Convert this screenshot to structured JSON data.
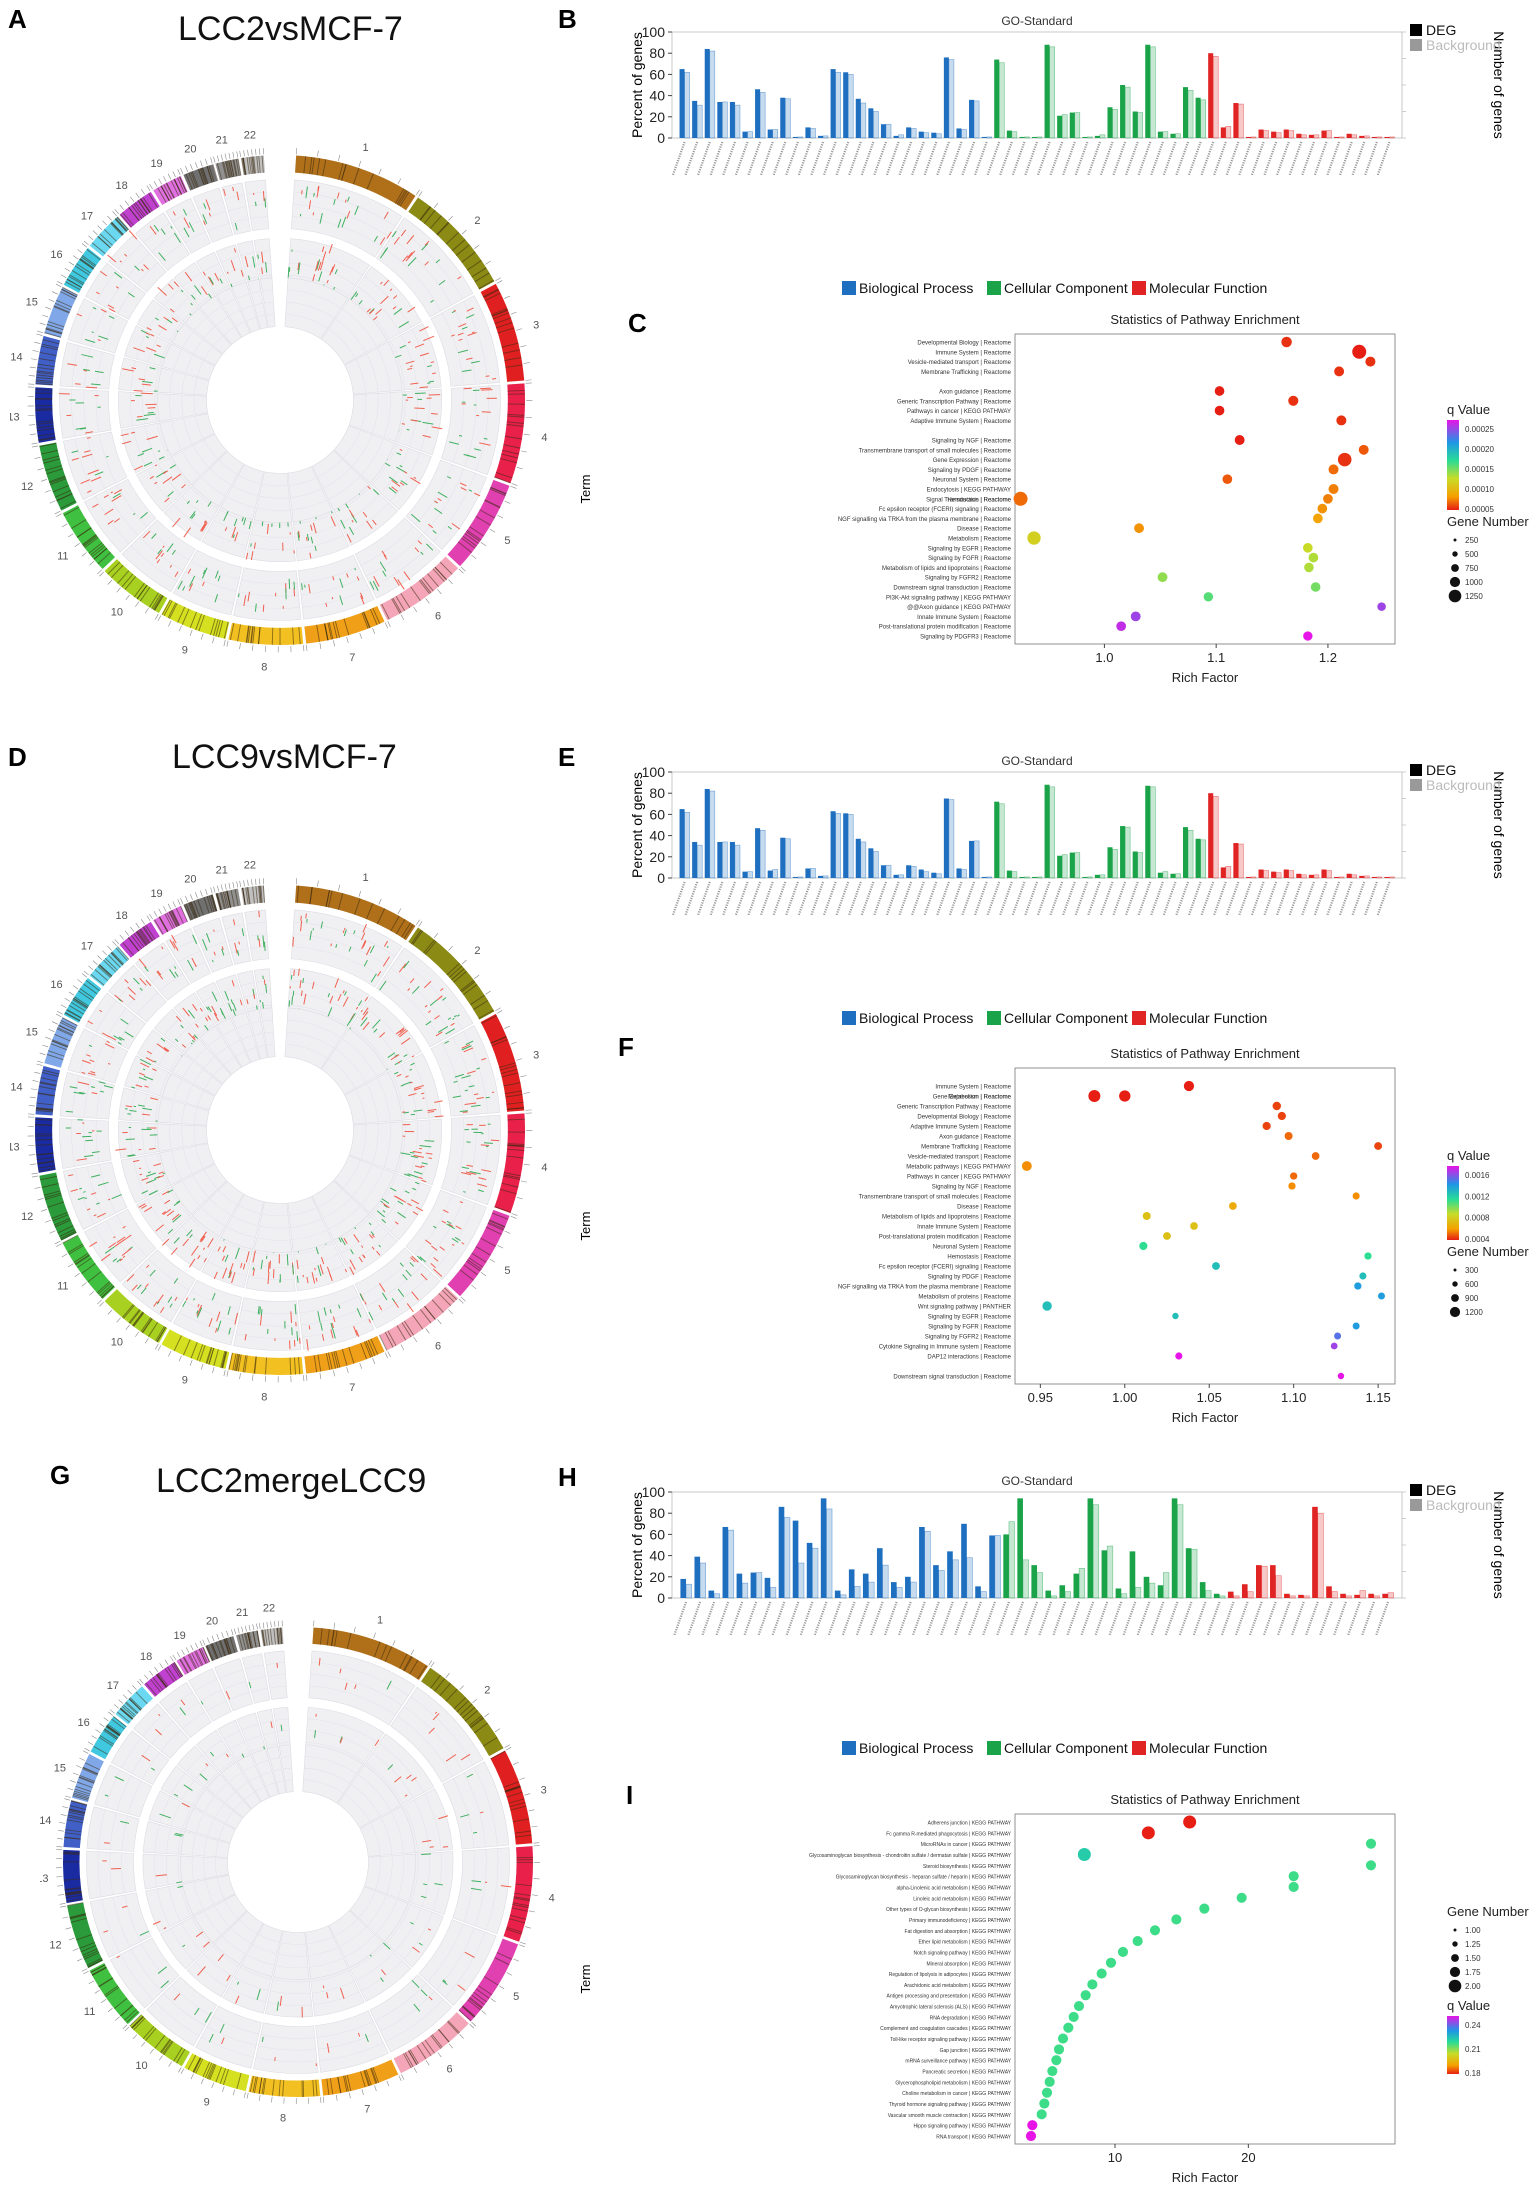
{
  "panels": {
    "A": {
      "label": "A",
      "title": "LCC2vsMCF-7"
    },
    "B": {
      "label": "B"
    },
    "C": {
      "label": "C"
    },
    "D": {
      "label": "D",
      "title": "LCC9vsMCF-7"
    },
    "E": {
      "label": "E"
    },
    "F": {
      "label": "F"
    },
    "G": {
      "label": "G",
      "title": "LCC2mergeLCC9"
    },
    "H": {
      "label": "H"
    },
    "I": {
      "label": "I"
    }
  },
  "colors": {
    "bp": "#1f6fc0",
    "cc": "#1ba34a",
    "mf": "#e02424",
    "bg_gray": "#9a9a9a"
  },
  "chart_data": [
    {
      "id": "B",
      "type": "bar",
      "title": "GO-Standard",
      "ylabel": "Percent of genes",
      "y2label": "Number of genes",
      "ylim": [
        0,
        100
      ],
      "yticks": [
        0,
        20,
        40,
        60,
        80,
        100
      ],
      "legend_top": [
        "DEG",
        "Background"
      ],
      "legend_bottom": [
        "Biological Process",
        "Cellular Component",
        "Molecular Function"
      ],
      "groups": [
        {
          "category": "Biological Process",
          "deg": [
            65,
            35,
            84,
            34,
            34,
            6,
            46,
            8,
            38,
            1,
            10,
            2,
            65,
            62,
            37,
            28,
            13,
            2,
            10,
            6,
            5,
            76,
            9,
            36,
            1
          ],
          "bg": [
            62,
            31,
            82,
            34,
            31,
            6,
            43,
            8,
            37,
            1,
            9,
            2,
            62,
            60,
            33,
            25,
            13,
            3,
            9,
            5,
            4,
            74,
            8,
            35,
            1
          ]
        },
        {
          "category": "Cellular Component",
          "deg": [
            74,
            7,
            1,
            1,
            88,
            21,
            24,
            1,
            2,
            29,
            50,
            25,
            88,
            6,
            4,
            48,
            38
          ],
          "bg": [
            71,
            6,
            1,
            1,
            86,
            22,
            24,
            1,
            3,
            27,
            48,
            24,
            86,
            6,
            4,
            45,
            36
          ]
        },
        {
          "category": "Molecular Function",
          "deg": [
            80,
            10,
            33,
            1,
            8,
            6,
            8,
            4,
            3,
            7,
            1,
            4,
            2,
            1,
            1
          ],
          "bg": [
            77,
            11,
            32,
            1,
            7,
            5,
            7,
            3,
            3,
            7,
            1,
            3,
            2,
            1,
            1
          ]
        }
      ]
    },
    {
      "id": "C",
      "type": "scatter",
      "title": "Statistics of Pathway Enrichment",
      "xlabel": "Rich Factor",
      "ylabel": "Term",
      "xlim": [
        0.92,
        1.26
      ],
      "xticks": [
        1.0,
        1.1,
        1.2
      ],
      "terms": [
        "Developmental Biology | Reactome",
        "Immune System | Reactome",
        "Vesicle-mediated transport | Reactome",
        "Membrane Trafficking | Reactome",
        "Axon guidance | Reactome",
        "Generic Transcription Pathway | Reactome",
        "Pathways in cancer | KEGG PATHWAY",
        "Adaptive Immune System | Reactome",
        "Signaling by NGF | Reactome",
        "Transmembrane transport of small molecules | Reactome",
        "Gene Expression | Reactome",
        "Signaling by PDGF | Reactome",
        "Neuronal System | Reactome",
        "Endocytosis | KEGG PATHWAY",
        "Hemostasis | Reactome",
        "Signal Transduction | Reactome",
        "Fc epsilon receptor (FCERI) signaling | Reactome",
        "NGF signalling via TRKA from the plasma membrane | Reactome",
        "Disease | Reactome",
        "Metabolism | Reactome",
        "Signaling by EGFR | Reactome",
        "Signaling by FGFR | Reactome",
        "Metabolism of lipids and lipoproteins | Reactome",
        "Signaling by FGFR2 | Reactome",
        "Downstream signal transduction | Reactome",
        "PI3K-Akt signaling pathway | KEGG PATHWAY",
        "@@Axon guidance | KEGG PATHWAY",
        "Innate Immune System | Reactome",
        "Post-translational protein modification | Reactome",
        "Signaling by PDGFR3 | Reactome"
      ],
      "x": [
        1.163,
        1.228,
        1.238,
        1.21,
        1.103,
        1.169,
        1.103,
        1.212,
        1.121,
        1.232,
        1.215,
        1.205,
        1.11,
        1.205,
        1.2,
        0.925,
        1.195,
        1.191,
        1.031,
        0.937,
        1.182,
        1.187,
        1.183,
        1.052,
        1.189,
        1.093,
        1.248,
        1.028,
        1.015,
        1.182
      ],
      "row": [
        0,
        1,
        2,
        3,
        5,
        6,
        7,
        8,
        10,
        11,
        12,
        13,
        14,
        15,
        16,
        16,
        17,
        18,
        19,
        20,
        21,
        22,
        23,
        24,
        25,
        26,
        27,
        28,
        29,
        30
      ],
      "size": [
        200,
        800,
        150,
        140,
        120,
        160,
        120,
        150,
        140,
        140,
        700,
        150,
        120,
        150,
        120,
        800,
        120,
        120,
        130,
        650,
        110,
        120,
        110,
        130,
        110,
        100,
        40,
        130,
        120,
        90
      ],
      "q": [
        2e-05,
        1e-05,
        2e-05,
        2e-05,
        1e-05,
        2e-05,
        1e-05,
        2e-05,
        1e-05,
        4e-05,
        2e-05,
        5e-05,
        4e-05,
        6e-05,
        6e-05,
        5e-05,
        7e-05,
        8e-05,
        7e-05,
        0.00012,
        0.00013,
        0.00014,
        0.00014,
        0.00015,
        0.00016,
        0.00017,
        0.00026,
        0.00026,
        0.00027,
        0.00028
      ],
      "legend_q_title": "q Value",
      "legend_q": [
        "0.00025",
        "0.00020",
        "0.00015",
        "0.00010",
        "0.00005"
      ],
      "legend_size_title": "Gene Number",
      "legend_size": [
        "250",
        "500",
        "750",
        "1000",
        "1250"
      ]
    },
    {
      "id": "E",
      "type": "bar",
      "title": "GO-Standard",
      "ylabel": "Percent of genes",
      "y2label": "Number of genes",
      "ylim": [
        0,
        100
      ],
      "yticks": [
        0,
        20,
        40,
        60,
        80,
        100
      ],
      "legend_top": [
        "DEG",
        "Background"
      ],
      "legend_bottom": [
        "Biological Process",
        "Cellular Component",
        "Molecular Function"
      ],
      "groups": [
        {
          "category": "Biological Process",
          "deg": [
            65,
            34,
            84,
            34,
            34,
            6,
            47,
            7,
            38,
            1,
            9,
            2,
            63,
            61,
            37,
            28,
            12,
            3,
            12,
            8,
            5,
            75,
            9,
            35,
            1
          ],
          "bg": [
            62,
            31,
            82,
            34,
            31,
            6,
            45,
            8,
            37,
            1,
            9,
            2,
            61,
            60,
            34,
            25,
            12,
            3,
            11,
            6,
            4,
            74,
            8,
            35,
            1
          ]
        },
        {
          "category": "Cellular Component",
          "deg": [
            72,
            7,
            1,
            1,
            88,
            21,
            24,
            1,
            3,
            29,
            49,
            25,
            87,
            5,
            4,
            48,
            37
          ],
          "bg": [
            70,
            6,
            1,
            1,
            86,
            22,
            24,
            1,
            3,
            27,
            48,
            24,
            86,
            6,
            4,
            45,
            36
          ]
        },
        {
          "category": "Molecular Function",
          "deg": [
            80,
            10,
            33,
            1,
            8,
            6,
            8,
            4,
            3,
            8,
            1,
            4,
            2,
            1,
            1
          ],
          "bg": [
            77,
            11,
            32,
            1,
            7,
            5,
            7,
            3,
            3,
            7,
            1,
            3,
            2,
            1,
            1
          ]
        }
      ]
    },
    {
      "id": "F",
      "type": "scatter",
      "title": "Statistics of Pathway Enrichment",
      "xlabel": "Rich Factor",
      "ylabel": "Term",
      "xlim": [
        0.935,
        1.16
      ],
      "xticks": [
        0.95,
        1.0,
        1.05,
        1.1,
        1.15
      ],
      "terms": [
        "Immune System | Reactome",
        "Gene Expression | Reactome",
        "Metabolism | Reactome",
        "Generic Transcription Pathway | Reactome",
        "Developmental Biology | Reactome",
        "Adaptive Immune System | Reactome",
        "Axon guidance | Reactome",
        "Membrane Trafficking | Reactome",
        "Vesicle-mediated transport | Reactome",
        "Metabolic pathways | KEGG PATHWAY",
        "Pathways in cancer | KEGG PATHWAY",
        "Signaling by NGF | Reactome",
        "Transmembrane transport of small molecules | Reactome",
        "Disease | Reactome",
        "Metabolism of lipids and lipoproteins | Reactome",
        "Innate Immune System | Reactome",
        "Post-translational protein modification | Reactome",
        "Neuronal System | Reactome",
        "Hemostasis | Reactome",
        "Fc epsilon receptor (FCERI) signaling | Reactome",
        "Signaling by PDGF | Reactome",
        "NGF signalling via TRKA from the plasma membrane | Reactome",
        "Metabolism of proteins | Reactome",
        "Wnt signaling pathway | PANTHER",
        "Signaling by EGFR | Reactome",
        "Signaling by FGFR | Reactome",
        "Signaling by FGFR2 | Reactome",
        "Cytokine Signaling in Immune system | Reactome",
        "DAP12 interactions | Reactome",
        "Downstream signal transduction | Reactome"
      ],
      "x": [
        1.038,
        0.982,
        1.0,
        1.09,
        1.093,
        1.084,
        1.097,
        1.15,
        1.113,
        0.942,
        1.1,
        1.099,
        1.137,
        1.064,
        1.013,
        1.041,
        1.025,
        1.011,
        1.144,
        1.054,
        1.141,
        1.138,
        1.152,
        0.954,
        1.03,
        1.137,
        1.126,
        1.124,
        1.032,
        1.128
      ],
      "row": [
        1,
        2,
        2,
        3,
        4,
        5,
        6,
        7,
        8,
        9,
        10,
        11,
        12,
        13,
        14,
        15,
        16,
        17,
        18,
        19,
        20,
        21,
        22,
        23,
        24,
        25,
        26,
        27,
        28,
        30
      ],
      "size": [
        400,
        650,
        550,
        200,
        180,
        180,
        160,
        150,
        140,
        350,
        110,
        110,
        100,
        140,
        160,
        140,
        150,
        180,
        110,
        150,
        100,
        110,
        90,
        300,
        60,
        90,
        90,
        80,
        100,
        60
      ],
      "q": [
        0.0001,
        0.0001,
        0.0001,
        0.0002,
        0.0002,
        0.0002,
        0.0003,
        0.0002,
        0.0003,
        0.0004,
        0.0003,
        0.0004,
        0.0004,
        0.0005,
        0.0006,
        0.0006,
        0.0006,
        0.001,
        0.001,
        0.0011,
        0.0011,
        0.0012,
        0.0012,
        0.0011,
        0.0011,
        0.0012,
        0.0013,
        0.0014,
        0.0015,
        0.0015
      ],
      "legend_q_title": "q Value",
      "legend_q": [
        "0.0016",
        "0.0012",
        "0.0008",
        "0.0004"
      ],
      "legend_size_title": "Gene Number",
      "legend_size": [
        "300",
        "600",
        "900",
        "1200"
      ]
    },
    {
      "id": "H",
      "type": "bar",
      "title": "GO-Standard",
      "ylabel": "Percent of genes",
      "y2label": "Number of genes",
      "ylim": [
        0,
        100
      ],
      "yticks": [
        0,
        20,
        40,
        60,
        80,
        100
      ],
      "legend_top": [
        "DEG",
        "Background"
      ],
      "legend_bottom": [
        "Biological Process",
        "Cellular Component",
        "Molecular Function"
      ],
      "groups": [
        {
          "category": "Biological Process",
          "deg": [
            18,
            39,
            7,
            67,
            23,
            24,
            19,
            86,
            73,
            52,
            94,
            7,
            27,
            23,
            47,
            15,
            20,
            67,
            31,
            44,
            70,
            11,
            59
          ],
          "bg": [
            13,
            33,
            4,
            64,
            14,
            24,
            10,
            76,
            33,
            47,
            84,
            3,
            11,
            15,
            31,
            10,
            15,
            63,
            26,
            36,
            38,
            6,
            59
          ]
        },
        {
          "category": "Cellular Component",
          "deg": [
            60,
            94,
            31,
            7,
            12,
            23,
            94,
            45,
            9,
            44,
            20,
            12,
            94,
            47,
            15,
            4
          ],
          "bg": [
            72,
            36,
            24,
            2,
            6,
            28,
            88,
            49,
            4,
            10,
            14,
            24,
            88,
            46,
            7,
            2
          ]
        },
        {
          "category": "Molecular Function",
          "deg": [
            6,
            13,
            31,
            31,
            4,
            3,
            86,
            11,
            4,
            3,
            4,
            4
          ],
          "bg": [
            2,
            6,
            30,
            21,
            2,
            2,
            80,
            6,
            2,
            7,
            2,
            5
          ]
        }
      ]
    },
    {
      "id": "I",
      "type": "scatter",
      "title": "Statistics of Pathway Enrichment",
      "xlabel": "Rich Factor",
      "ylabel": "Term",
      "xlim": [
        2.5,
        31
      ],
      "xticks": [
        10,
        20
      ],
      "terms": [
        "Adherens junction | KEGG PATHWAY",
        "Fc gamma R-mediated phagocytosis | KEGG PATHWAY",
        "MicroRNAs in cancer | KEGG PATHWAY",
        "Glycosaminoglycan biosynthesis - chondroitin sulfate / dermatan sulfate | KEGG PATHWAY",
        "Steroid biosynthesis | KEGG PATHWAY",
        "Glycosaminoglycan biosynthesis - heparan sulfate / heparin | KEGG PATHWAY",
        "alpha-Linolenic acid metabolism | KEGG PATHWAY",
        "Linoleic acid metabolism | KEGG PATHWAY",
        "Other types of O-glycan biosynthesis | KEGG PATHWAY",
        "Primary immunodeficiency | KEGG PATHWAY",
        "Fat digestion and absorption | KEGG PATHWAY",
        "Ether lipid metabolism | KEGG PATHWAY",
        "Notch signaling pathway | KEGG PATHWAY",
        "Mineral absorption | KEGG PATHWAY",
        "Regulation of lipolysis in adipocytes | KEGG PATHWAY",
        "Arachidonic acid metabolism | KEGG PATHWAY",
        "Antigen processing and presentation | KEGG PATHWAY",
        "Amyotrophic lateral sclerosis (ALS) | KEGG PATHWAY",
        "RNA degradation | KEGG PATHWAY",
        "Complement and coagulation cascades | KEGG PATHWAY",
        "Toll-like receptor signaling pathway | KEGG PATHWAY",
        "Gap junction | KEGG PATHWAY",
        "mRNA surveillance pathway | KEGG PATHWAY",
        "Pancreatic secretion | KEGG PATHWAY",
        "Glycerophospholipid metabolism | KEGG PATHWAY",
        "Choline metabolism in cancer | KEGG PATHWAY",
        "Thyroid hormone signaling pathway | KEGG PATHWAY",
        "Vascular smooth muscle contraction | KEGG PATHWAY",
        "Hippo signaling pathway | KEGG PATHWAY",
        "RNA transport | KEGG PATHWAY"
      ],
      "x": [
        15.6,
        12.5,
        29.2,
        7.7,
        29.2,
        23.4,
        23.4,
        19.5,
        16.7,
        14.6,
        13.0,
        11.7,
        10.6,
        9.7,
        9.0,
        8.3,
        7.8,
        7.3,
        6.9,
        6.5,
        6.1,
        5.8,
        5.6,
        5.3,
        5.1,
        4.9,
        4.7,
        4.5,
        3.8,
        3.7
      ],
      "row": [
        0,
        1,
        2,
        3,
        4,
        5,
        6,
        7,
        8,
        9,
        10,
        11,
        12,
        13,
        14,
        15,
        16,
        17,
        18,
        19,
        20,
        21,
        22,
        23,
        24,
        25,
        26,
        27,
        28,
        29
      ],
      "size": [
        2,
        2,
        1,
        2,
        1,
        1,
        1,
        1,
        1,
        1,
        1,
        1,
        1,
        1,
        1,
        1,
        1,
        1,
        1,
        1,
        1,
        1,
        1,
        1,
        1,
        1,
        1,
        1,
        1,
        1
      ],
      "q": [
        0.185,
        0.185,
        0.235,
        0.24,
        0.235,
        0.235,
        0.235,
        0.235,
        0.235,
        0.235,
        0.235,
        0.235,
        0.235,
        0.235,
        0.235,
        0.235,
        0.235,
        0.235,
        0.235,
        0.235,
        0.235,
        0.235,
        0.235,
        0.235,
        0.235,
        0.235,
        0.235,
        0.235,
        0.265,
        0.265
      ],
      "legend_size_title": "Gene Number",
      "legend_size": [
        "1.00",
        "1.25",
        "1.50",
        "1.75",
        "2.00"
      ],
      "legend_q_title": "q Value",
      "legend_q": [
        "0.24",
        "0.21",
        "0.18"
      ]
    }
  ]
}
